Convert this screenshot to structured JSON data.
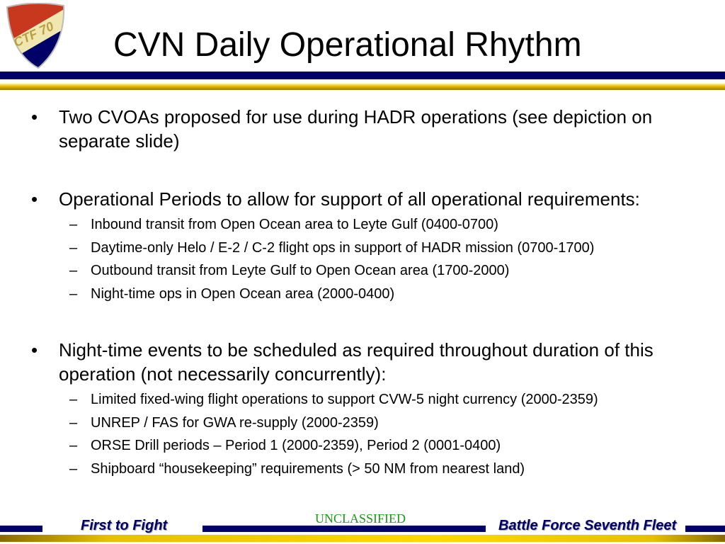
{
  "logo": {
    "text": "CTF 70",
    "motto": "First To Fight"
  },
  "title": "CVN Daily Operational Rhythm",
  "bullets": [
    {
      "text": "Two CVOAs proposed for use during HADR operations (see depiction on separate slide)",
      "subs": []
    },
    {
      "text": "Operational Periods to allow for support of all operational requirements:",
      "subs": [
        "Inbound transit from Open Ocean area to Leyte Gulf (0400-0700)",
        "Daytime-only Helo / E-2 / C-2 flight ops in support of HADR mission (0700-1700)",
        "Outbound transit from Leyte Gulf to Open Ocean area (1700-2000)",
        "Night-time ops in Open Ocean area (2000-0400)"
      ]
    },
    {
      "text": "Night-time events to be scheduled as required throughout duration of this operation (not necessarily concurrently):",
      "subs": [
        "Limited fixed-wing flight operations to support CVW-5 night currency (2000-2359)",
        "UNREP / FAS for GWA re-supply (2000-2359)",
        "ORSE Drill periods – Period 1 (2000-2359), Period 2 (0001-0400)",
        "Shipboard “housekeeping” requirements (> 50 NM from nearest land)"
      ]
    }
  ],
  "markers": {
    "bullet": "•",
    "dash": "–"
  },
  "footer": {
    "left": "First to Fight",
    "center": "UNCLASSIFIED",
    "right": "Battle Force Seventh Fleet"
  },
  "colors": {
    "navy": "#000066",
    "gold": "#e8c000",
    "classification": "#1a9a1a"
  }
}
